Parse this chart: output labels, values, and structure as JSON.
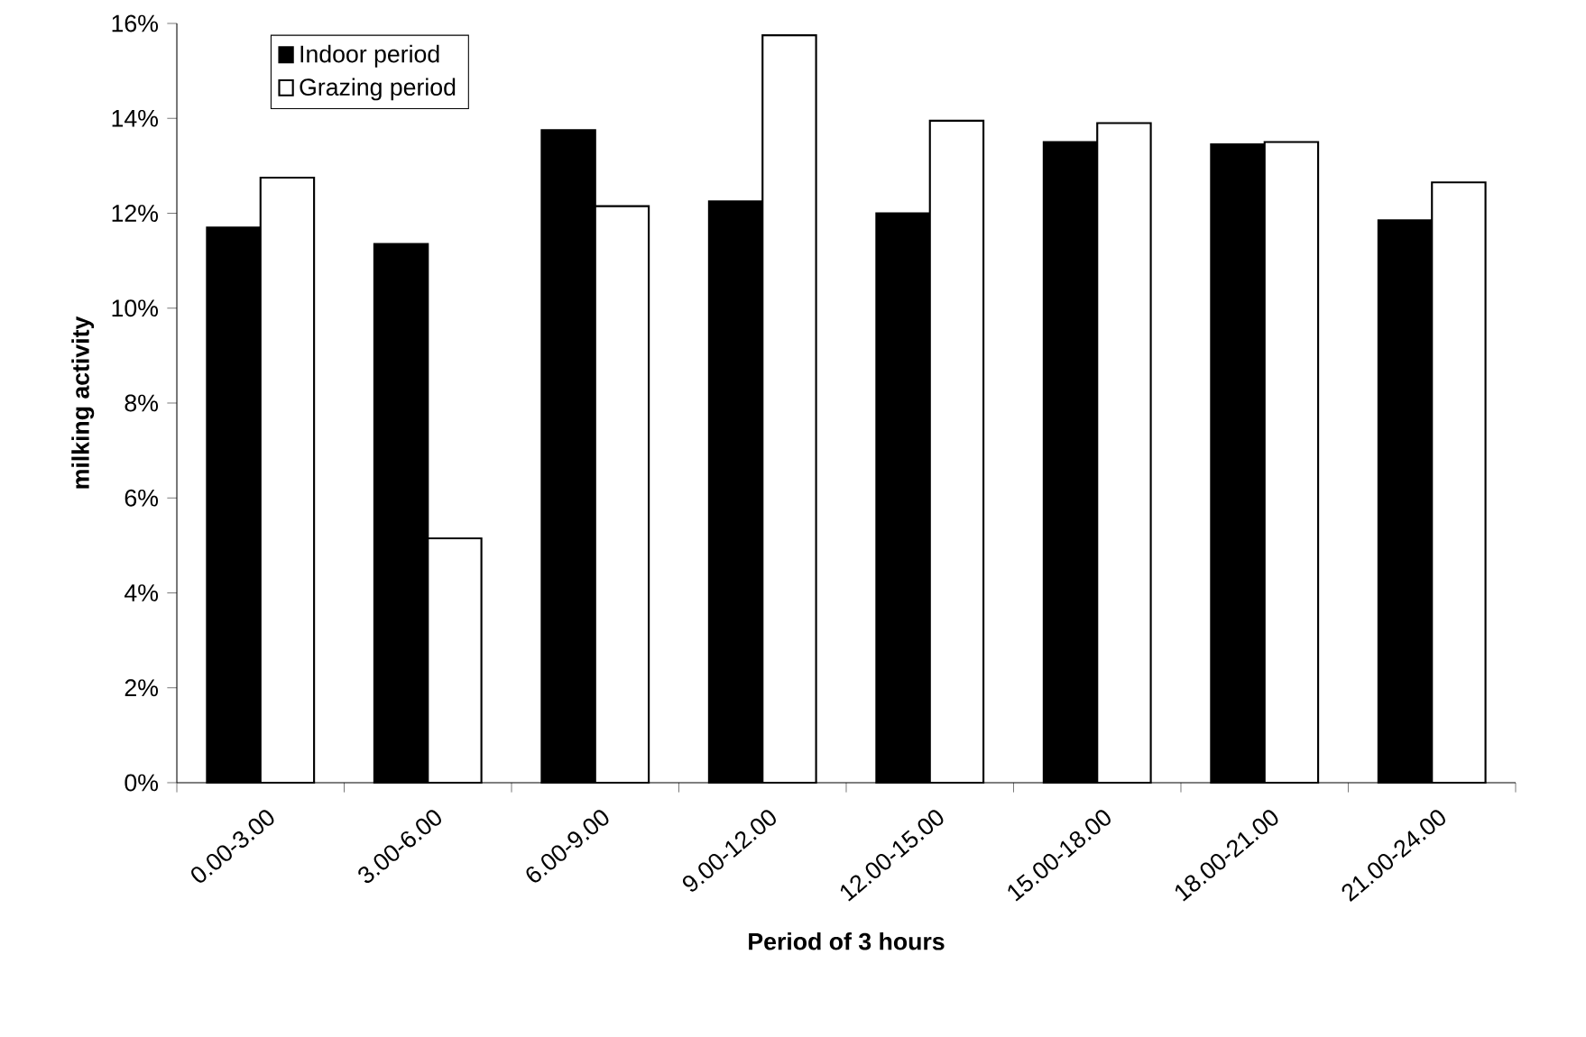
{
  "chart_data": {
    "type": "bar",
    "xlabel": "Period of 3 hours",
    "ylabel": "milking activity",
    "categories": [
      "0.00-3.00",
      "3.00-6.00",
      "6.00-9.00",
      "9.00-12.00",
      "12.00-15.00",
      "15.00-18.00",
      "18.00-21.00",
      "21.00-24.00"
    ],
    "series": [
      {
        "name": "Indoor period",
        "color": "#000000",
        "values": [
          11.7,
          11.35,
          13.75,
          12.25,
          12.0,
          13.5,
          13.45,
          11.85
        ]
      },
      {
        "name": "Grazing period",
        "color": "#ffffff",
        "values": [
          12.75,
          5.15,
          12.15,
          15.75,
          13.95,
          13.9,
          13.5,
          12.65
        ]
      }
    ],
    "ylim": [
      0,
      16
    ],
    "yticks": [
      {
        "value": 0,
        "label": "0%"
      },
      {
        "value": 2,
        "label": "2%"
      },
      {
        "value": 4,
        "label": "4%"
      },
      {
        "value": 6,
        "label": "6%"
      },
      {
        "value": 8,
        "label": "8%"
      },
      {
        "value": 10,
        "label": "10%"
      },
      {
        "value": 12,
        "label": "12%"
      },
      {
        "value": 14,
        "label": "14%"
      },
      {
        "value": 16,
        "label": "16%"
      }
    ],
    "grid": false,
    "legend": "top left"
  }
}
